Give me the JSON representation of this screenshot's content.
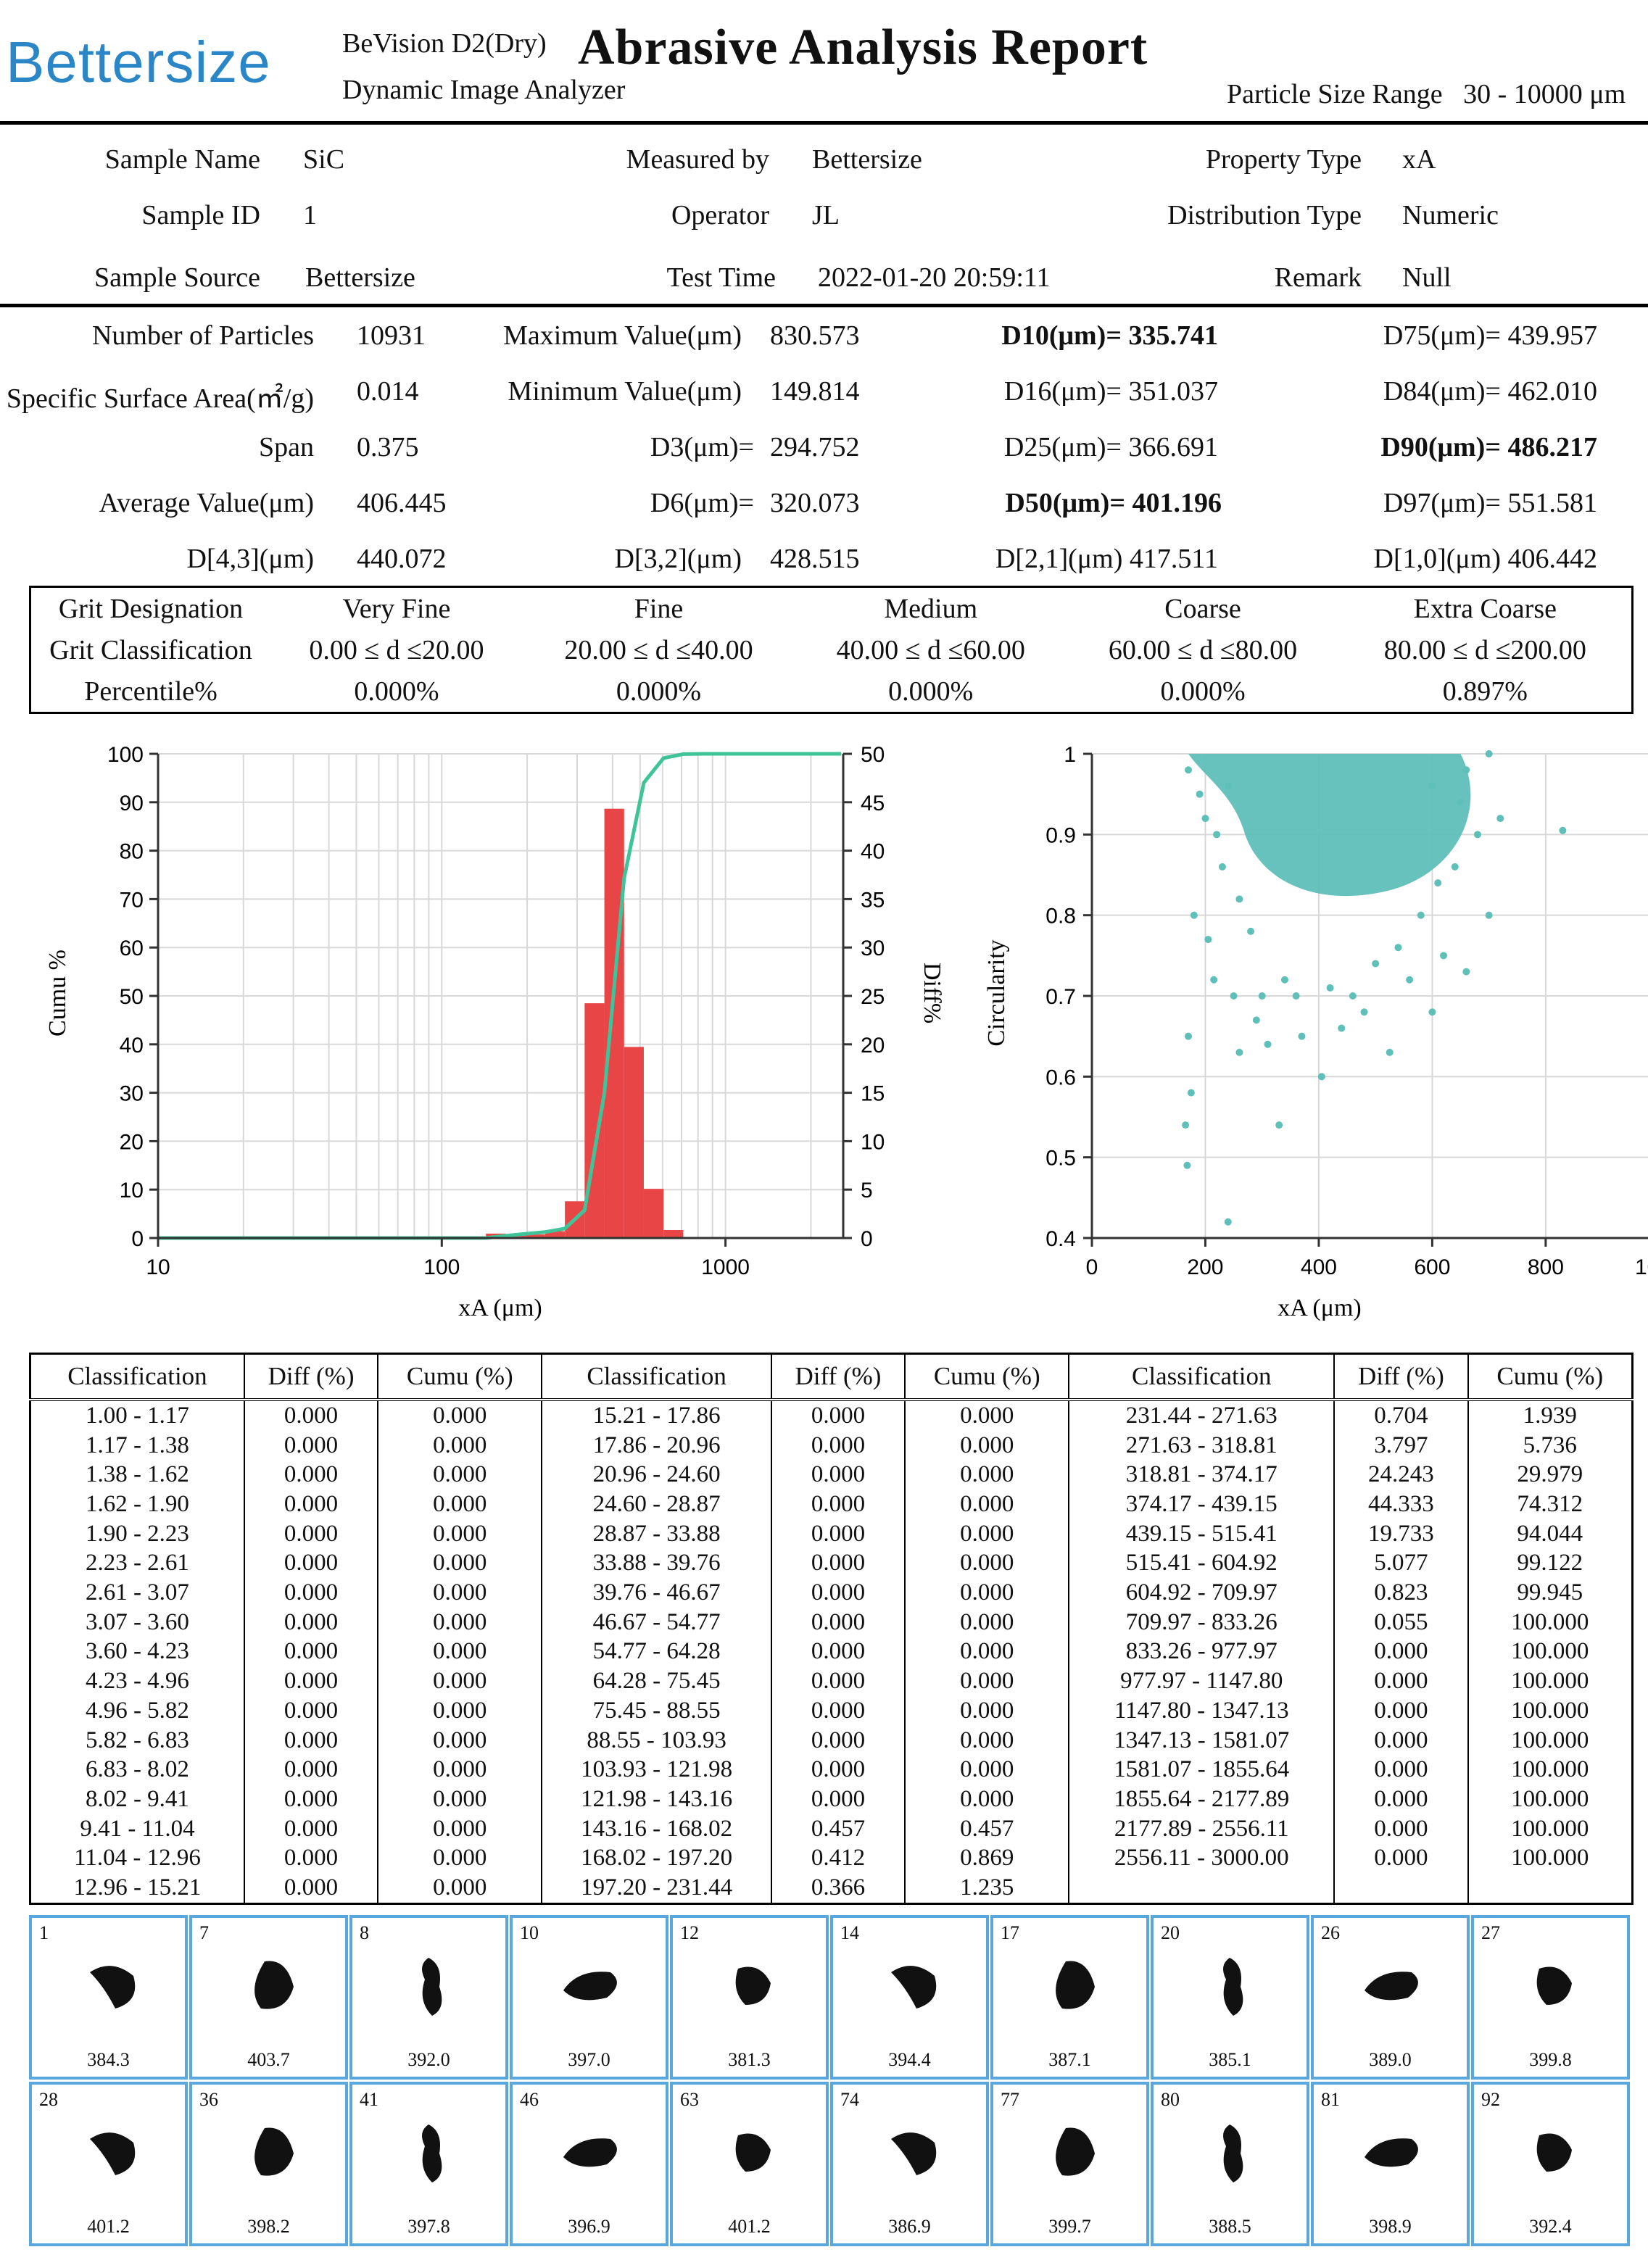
{
  "header": {
    "logo": "Bettersize",
    "product_model": "BeVision D2(Dry)",
    "product_type": "Dynamic Image Analyzer",
    "title": "Abrasive  Analysis Report",
    "range_label": "Particle Size Range",
    "range_value": "30 - 10000 μm"
  },
  "info": {
    "sample_name_label": "Sample Name",
    "sample_name": "SiC",
    "measured_by_label": "Measured by",
    "measured_by": "Bettersize",
    "property_type_label": "Property Type",
    "property_type": "xA",
    "sample_id_label": "Sample ID",
    "sample_id": "1",
    "operator_label": "Operator",
    "operator": "JL",
    "distribution_type_label": "Distribution Type",
    "distribution_type": "Numeric",
    "sample_source_label": "Sample Source",
    "sample_source": "Bettersize",
    "test_time_label": "Test Time",
    "test_time": "2022-01-20 20:59:11",
    "remark_label": "Remark",
    "remark": "Null"
  },
  "stats": {
    "num_particles_label": "Number of Particles",
    "num_particles": "10931",
    "ssa_label": "Specific Surface Area(㎡/g)",
    "ssa": "0.014",
    "span_label": "Span",
    "span": "0.375",
    "avg_label": "Average Value(μm)",
    "avg": "406.445",
    "d43_label": "D[4,3](μm)",
    "d43": "440.072",
    "max_label": "Maximum Value(μm)",
    "max": "830.573",
    "min_label": "Minimum Value(μm)",
    "min": "149.814",
    "d3_label": "D3(μm)=",
    "d3": "294.752",
    "d6_label": "D6(μm)=",
    "d6": "320.073",
    "d32_label": "D[3,2](μm)",
    "d32": "428.515",
    "d10": "D10(μm)= 335.741",
    "d16": "D16(μm)= 351.037",
    "d25": "D25(μm)= 366.691",
    "d50": "D50(μm)= 401.196",
    "d21": "D[2,1](μm) 417.511",
    "d75": "D75(μm)= 439.957",
    "d84": "D84(μm)= 462.010",
    "d90": "D90(μm)= 486.217",
    "d97": "D97(μm)= 551.581",
    "d10_": "D[1,0](μm) 406.442"
  },
  "grit": {
    "designation_label": "Grit Designation",
    "classification_label": "Grit Classification",
    "percentile_label": "Percentile%",
    "columns": [
      {
        "name": "Very Fine",
        "range": "0.00 ≤ d ≤20.00",
        "pct": "0.000%"
      },
      {
        "name": "Fine",
        "range": "20.00 ≤ d ≤40.00",
        "pct": "0.000%"
      },
      {
        "name": "Medium",
        "range": "40.00 ≤ d ≤60.00",
        "pct": "0.000%"
      },
      {
        "name": "Coarse",
        "range": "60.00 ≤ d ≤80.00",
        "pct": "0.000%"
      },
      {
        "name": "Extra Coarse",
        "range": "80.00 ≤ d ≤200.00",
        "pct": "0.897%"
      }
    ]
  },
  "chart_data": [
    {
      "type": "bar",
      "xlabel": "xA (μm)",
      "ylabel": "Cumu %",
      "y2label": "Diff%",
      "xscale": "log",
      "xlim": [
        10,
        2600
      ],
      "ylim": [
        0,
        100
      ],
      "y2lim": [
        0,
        50
      ],
      "xticks": [
        "10",
        "100",
        "1000"
      ],
      "yticks": [
        "0",
        "10",
        "20",
        "30",
        "40",
        "50",
        "60",
        "70",
        "80",
        "90",
        "100"
      ],
      "y2ticks": [
        "0",
        "5",
        "10",
        "15",
        "20",
        "25",
        "30",
        "35",
        "40",
        "45",
        "50"
      ],
      "bar_color": "#e84646",
      "line_color": "#3fc49a",
      "bars": [
        {
          "x0": 143.16,
          "x1": 168.02,
          "diff": 0.457
        },
        {
          "x0": 168.02,
          "x1": 197.2,
          "diff": 0.412
        },
        {
          "x0": 197.2,
          "x1": 231.44,
          "diff": 0.366
        },
        {
          "x0": 231.44,
          "x1": 271.63,
          "diff": 0.704
        },
        {
          "x0": 271.63,
          "x1": 318.81,
          "diff": 3.797
        },
        {
          "x0": 318.81,
          "x1": 374.17,
          "diff": 24.243
        },
        {
          "x0": 374.17,
          "x1": 439.15,
          "diff": 44.333
        },
        {
          "x0": 439.15,
          "x1": 515.41,
          "diff": 19.733
        },
        {
          "x0": 515.41,
          "x1": 604.92,
          "diff": 5.077
        },
        {
          "x0": 604.92,
          "x1": 709.97,
          "diff": 0.823
        },
        {
          "x0": 709.97,
          "x1": 833.26,
          "diff": 0.055
        }
      ],
      "cumu_line": {
        "x": [
          10,
          143.16,
          168.02,
          197.2,
          231.44,
          271.63,
          318.81,
          374.17,
          439.15,
          515.41,
          604.92,
          709.97,
          833.26,
          2556.11
        ],
        "y": [
          0,
          0,
          0.457,
          0.869,
          1.235,
          1.939,
          5.736,
          29.979,
          74.312,
          94.044,
          99.122,
          99.945,
          100,
          100
        ]
      }
    },
    {
      "type": "scatter",
      "xlabel": "xA (μm)",
      "ylabel": "Circularity",
      "xlim": [
        0,
        1000
      ],
      "ylim": [
        0.4,
        1
      ],
      "xticks": [
        "0",
        "200",
        "400",
        "600",
        "800",
        "1000"
      ],
      "yticks": [
        "0.4",
        "0.5",
        "0.6",
        "0.7",
        "0.8",
        "0.9",
        "1"
      ],
      "point_color": "#5fbfb9",
      "points": [
        [
          165,
          0.54
        ],
        [
          168,
          0.49
        ],
        [
          175,
          0.58
        ],
        [
          170,
          0.65
        ],
        [
          240,
          0.42
        ],
        [
          330,
          0.54
        ],
        [
          405,
          0.6
        ],
        [
          525,
          0.63
        ],
        [
          600,
          0.68
        ],
        [
          830,
          0.905
        ],
        [
          180,
          0.8
        ],
        [
          205,
          0.77
        ],
        [
          215,
          0.72
        ],
        [
          250,
          0.7
        ],
        [
          290,
          0.67
        ],
        [
          310,
          0.64
        ],
        [
          260,
          0.63
        ],
        [
          300,
          0.7
        ],
        [
          370,
          0.65
        ],
        [
          440,
          0.66
        ],
        [
          480,
          0.68
        ],
        [
          560,
          0.72
        ],
        [
          620,
          0.75
        ],
        [
          660,
          0.73
        ],
        [
          700,
          0.8
        ],
        [
          720,
          0.92
        ],
        [
          680,
          0.9
        ],
        [
          640,
          0.86
        ],
        [
          190,
          0.95
        ],
        [
          220,
          0.9
        ],
        [
          230,
          0.86
        ],
        [
          260,
          0.82
        ],
        [
          280,
          0.78
        ],
        [
          340,
          0.72
        ],
        [
          360,
          0.7
        ],
        [
          420,
          0.71
        ],
        [
          460,
          0.7
        ],
        [
          500,
          0.74
        ],
        [
          540,
          0.76
        ],
        [
          580,
          0.8
        ],
        [
          610,
          0.84
        ],
        [
          650,
          0.94
        ],
        [
          170,
          0.98
        ],
        [
          200,
          0.92
        ],
        [
          240,
          0.96
        ],
        [
          600,
          0.96
        ],
        [
          660,
          0.98
        ],
        [
          700,
          1.0
        ]
      ]
    }
  ],
  "dist_table": {
    "headers": [
      "Classification",
      "Diff (%)",
      "Cumu (%)",
      "Classification",
      "Diff (%)",
      "Cumu (%)",
      "Classification",
      "Diff (%)",
      "Cumu (%)"
    ],
    "rows": [
      [
        "1.00 - 1.17",
        "0.000",
        "0.000",
        "15.21 - 17.86",
        "0.000",
        "0.000",
        "231.44 - 271.63",
        "0.704",
        "1.939"
      ],
      [
        "1.17 - 1.38",
        "0.000",
        "0.000",
        "17.86 - 20.96",
        "0.000",
        "0.000",
        "271.63 - 318.81",
        "3.797",
        "5.736"
      ],
      [
        "1.38 - 1.62",
        "0.000",
        "0.000",
        "20.96 - 24.60",
        "0.000",
        "0.000",
        "318.81 - 374.17",
        "24.243",
        "29.979"
      ],
      [
        "1.62 - 1.90",
        "0.000",
        "0.000",
        "24.60 - 28.87",
        "0.000",
        "0.000",
        "374.17 - 439.15",
        "44.333",
        "74.312"
      ],
      [
        "1.90 - 2.23",
        "0.000",
        "0.000",
        "28.87 - 33.88",
        "0.000",
        "0.000",
        "439.15 - 515.41",
        "19.733",
        "94.044"
      ],
      [
        "2.23 - 2.61",
        "0.000",
        "0.000",
        "33.88 - 39.76",
        "0.000",
        "0.000",
        "515.41 - 604.92",
        "5.077",
        "99.122"
      ],
      [
        "2.61 - 3.07",
        "0.000",
        "0.000",
        "39.76 - 46.67",
        "0.000",
        "0.000",
        "604.92 - 709.97",
        "0.823",
        "99.945"
      ],
      [
        "3.07 - 3.60",
        "0.000",
        "0.000",
        "46.67 - 54.77",
        "0.000",
        "0.000",
        "709.97 - 833.26",
        "0.055",
        "100.000"
      ],
      [
        "3.60 - 4.23",
        "0.000",
        "0.000",
        "54.77 - 64.28",
        "0.000",
        "0.000",
        "833.26 - 977.97",
        "0.000",
        "100.000"
      ],
      [
        "4.23 - 4.96",
        "0.000",
        "0.000",
        "64.28 - 75.45",
        "0.000",
        "0.000",
        "977.97 - 1147.80",
        "0.000",
        "100.000"
      ],
      [
        "4.96 - 5.82",
        "0.000",
        "0.000",
        "75.45 - 88.55",
        "0.000",
        "0.000",
        "1147.80 - 1347.13",
        "0.000",
        "100.000"
      ],
      [
        "5.82 - 6.83",
        "0.000",
        "0.000",
        "88.55 - 103.93",
        "0.000",
        "0.000",
        "1347.13 - 1581.07",
        "0.000",
        "100.000"
      ],
      [
        "6.83 - 8.02",
        "0.000",
        "0.000",
        "103.93 - 121.98",
        "0.000",
        "0.000",
        "1581.07 - 1855.64",
        "0.000",
        "100.000"
      ],
      [
        "8.02 - 9.41",
        "0.000",
        "0.000",
        "121.98 - 143.16",
        "0.000",
        "0.000",
        "1855.64 - 2177.89",
        "0.000",
        "100.000"
      ],
      [
        "9.41 - 11.04",
        "0.000",
        "0.000",
        "143.16 - 168.02",
        "0.457",
        "0.457",
        "2177.89 - 2556.11",
        "0.000",
        "100.000"
      ],
      [
        "11.04 - 12.96",
        "0.000",
        "0.000",
        "168.02 - 197.20",
        "0.412",
        "0.869",
        "2556.11 - 3000.00",
        "0.000",
        "100.000"
      ],
      [
        "12.96 - 15.21",
        "0.000",
        "0.000",
        "197.20 - 231.44",
        "0.366",
        "1.235",
        "",
        "",
        ""
      ]
    ]
  },
  "particles": [
    {
      "id": "1",
      "size": "384.3"
    },
    {
      "id": "7",
      "size": "403.7"
    },
    {
      "id": "8",
      "size": "392.0"
    },
    {
      "id": "10",
      "size": "397.0"
    },
    {
      "id": "12",
      "size": "381.3"
    },
    {
      "id": "14",
      "size": "394.4"
    },
    {
      "id": "17",
      "size": "387.1"
    },
    {
      "id": "20",
      "size": "385.1"
    },
    {
      "id": "26",
      "size": "389.0"
    },
    {
      "id": "27",
      "size": "399.8"
    },
    {
      "id": "28",
      "size": "401.2"
    },
    {
      "id": "36",
      "size": "398.2"
    },
    {
      "id": "41",
      "size": "397.8"
    },
    {
      "id": "46",
      "size": "396.9"
    },
    {
      "id": "63",
      "size": "401.2"
    },
    {
      "id": "74",
      "size": "386.9"
    },
    {
      "id": "77",
      "size": "399.7"
    },
    {
      "id": "80",
      "size": "388.5"
    },
    {
      "id": "81",
      "size": "398.9"
    },
    {
      "id": "92",
      "size": "392.4"
    }
  ]
}
